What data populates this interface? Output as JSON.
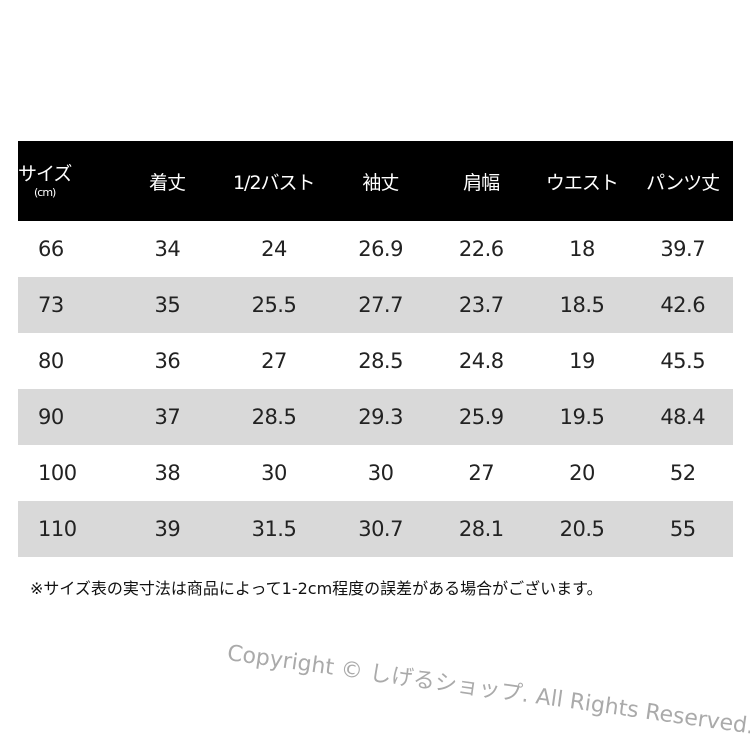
{
  "headers": [
    "サイズ",
    "着丈",
    "1/2バスト",
    "袖丈",
    "肩幅",
    "ウエスト",
    "パンツ丈"
  ],
  "size_unit": "(cm)",
  "rows": [
    [
      "66",
      "34",
      "24",
      "26.9",
      "22.6",
      "18",
      "39.7"
    ],
    [
      "73",
      "35",
      "25.5",
      "27.7",
      "23.7",
      "18.5",
      "42.6"
    ],
    [
      "80",
      "36",
      "27",
      "28.5",
      "24.8",
      "19",
      "45.5"
    ],
    [
      "90",
      "37",
      "28.5",
      "29.3",
      "25.9",
      "19.5",
      "48.4"
    ],
    [
      "100",
      "38",
      "30",
      "30",
      "27",
      "20",
      "52"
    ],
    [
      "110",
      "39",
      "31.5",
      "30.7",
      "28.1",
      "20.5",
      "55"
    ]
  ],
  "note": "※サイズ表の実寸法は商品によって1-2cm程度の誤差がある場合がございます。",
  "watermark": "Copyright © しげるショップ. All Rights Reserved.",
  "colors": {
    "header_bg": "#000000",
    "alt_row_bg": "#d9d9d9"
  }
}
